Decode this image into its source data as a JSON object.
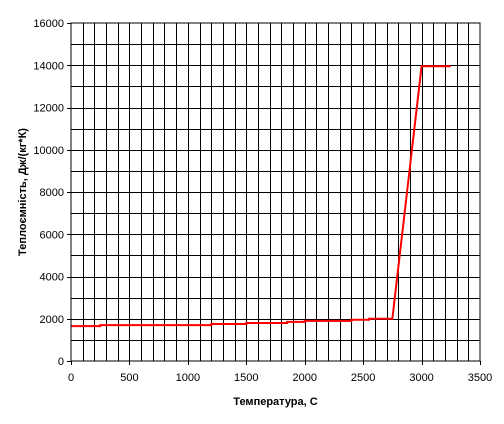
{
  "chart_data": {
    "type": "line",
    "title": "",
    "xlabel": "Температура, С",
    "ylabel": "Теплоємність, Дж/(кг*К)",
    "xlim": [
      0,
      3500
    ],
    "ylim": [
      0,
      16000
    ],
    "x_major_step": 500,
    "x_minor_step": 100,
    "y_major_step": 2000,
    "y_minor_step": 1000,
    "x_ticks": [
      "0",
      "500",
      "1000",
      "1500",
      "2000",
      "2500",
      "3000",
      "3500"
    ],
    "y_ticks": [
      "0",
      "2000",
      "4000",
      "6000",
      "8000",
      "10000",
      "12000",
      "14000",
      "16000"
    ],
    "grid": true,
    "legend": "none",
    "series": [
      {
        "color": "#ff0000",
        "x": [
          0,
          250,
          250,
          1200,
          1200,
          1500,
          1500,
          1850,
          1850,
          2000,
          2000,
          2400,
          2400,
          2550,
          2550,
          2750,
          3000,
          3250
        ],
        "y": [
          1650,
          1650,
          1700,
          1700,
          1750,
          1750,
          1800,
          1800,
          1850,
          1850,
          1900,
          1900,
          1950,
          1950,
          2000,
          2000,
          13950,
          13950
        ]
      }
    ]
  }
}
